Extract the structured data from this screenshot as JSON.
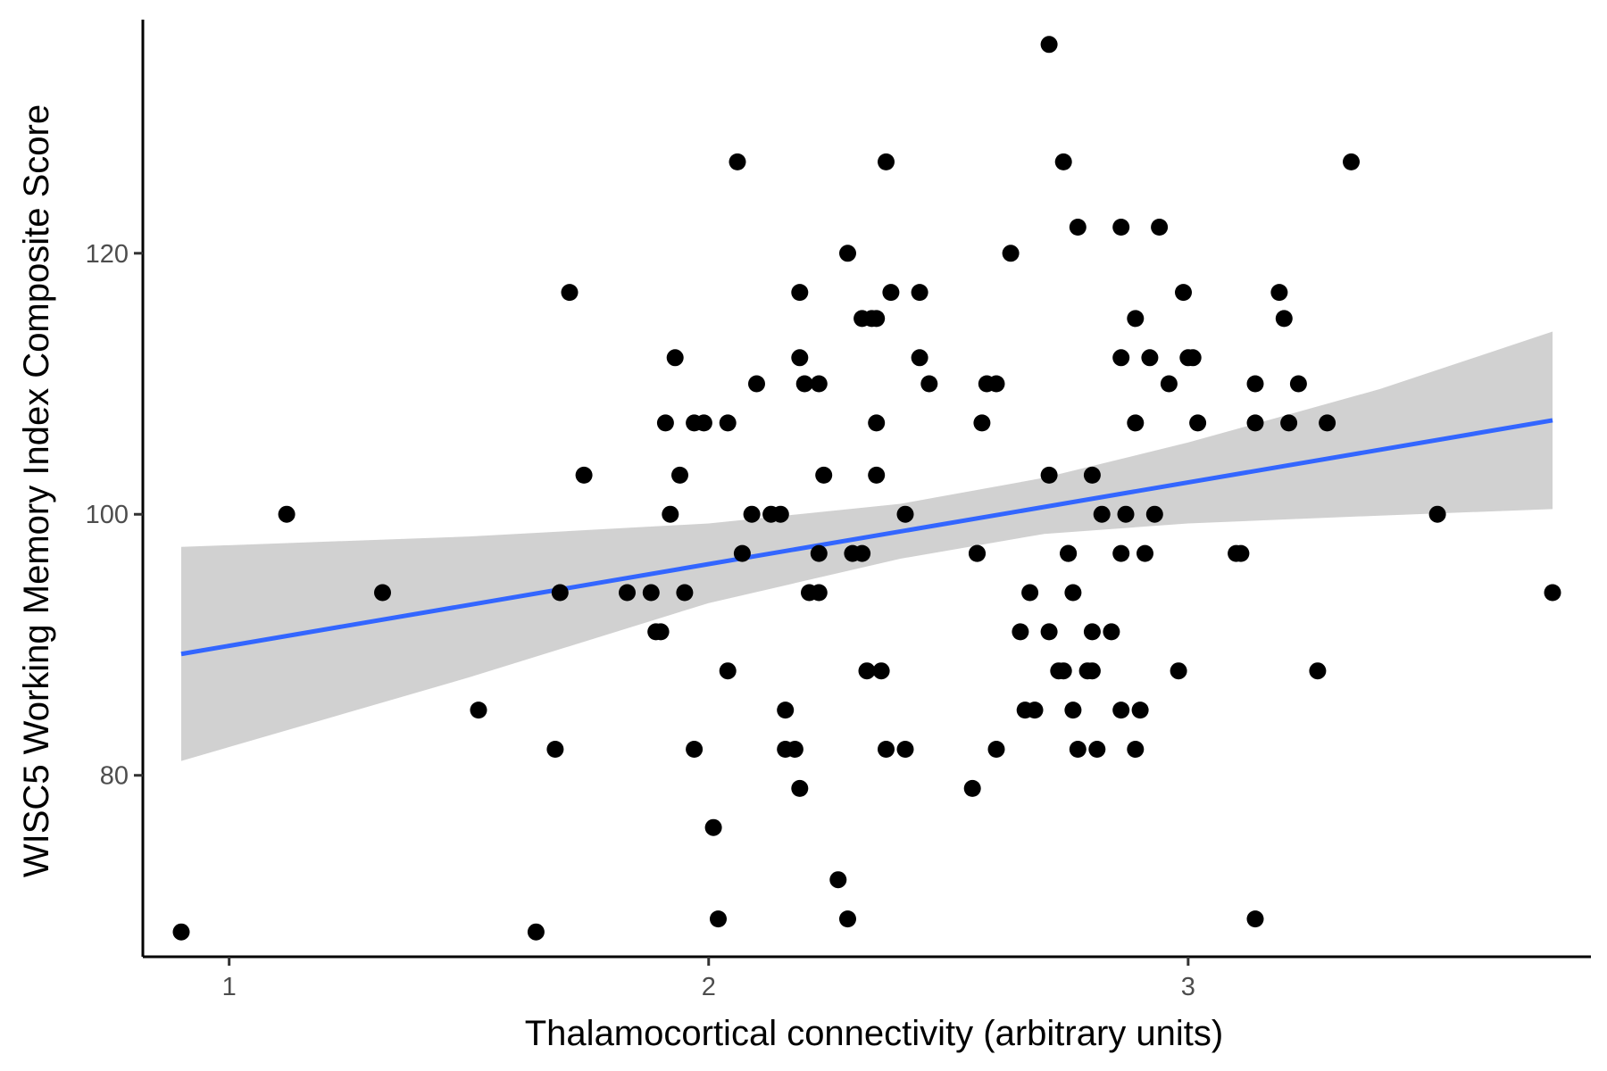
{
  "chart_data": {
    "type": "scatter",
    "title": "",
    "xlabel": "Thalamocortical connectivity (arbitrary units)",
    "ylabel": "WISC5 Working Memory Index Composite Score",
    "xlim": [
      0.82,
      3.84
    ],
    "ylim": [
      66.1,
      137.9
    ],
    "xticks": [
      1,
      2,
      3
    ],
    "yticks": [
      80,
      100,
      120
    ],
    "grid": false,
    "legend": "none",
    "colors": {
      "points": "#000000",
      "fit_line": "#3366ff",
      "ci_band": "#cccccc"
    },
    "fit": {
      "method": "lm",
      "line": [
        [
          0.9,
          89.3
        ],
        [
          3.76,
          107.2
        ]
      ],
      "ci_upper": [
        [
          0.9,
          97.5
        ],
        [
          1.5,
          98.3
        ],
        [
          2.0,
          99.3
        ],
        [
          2.4,
          100.8
        ],
        [
          2.7,
          102.8
        ],
        [
          3.0,
          105.5
        ],
        [
          3.4,
          109.6
        ],
        [
          3.76,
          114.0
        ]
      ],
      "ci_lower": [
        [
          0.9,
          81.1
        ],
        [
          1.5,
          87.5
        ],
        [
          2.0,
          93.2
        ],
        [
          2.4,
          96.6
        ],
        [
          2.7,
          98.5
        ],
        [
          3.0,
          99.3
        ],
        [
          3.4,
          99.9
        ],
        [
          3.76,
          100.4
        ]
      ]
    },
    "points": [
      [
        0.9,
        68
      ],
      [
        1.12,
        100
      ],
      [
        1.32,
        94
      ],
      [
        1.52,
        85
      ],
      [
        1.64,
        68
      ],
      [
        1.68,
        82
      ],
      [
        1.69,
        94
      ],
      [
        1.71,
        117
      ],
      [
        1.74,
        103
      ],
      [
        1.83,
        94
      ],
      [
        1.88,
        94
      ],
      [
        1.89,
        91
      ],
      [
        1.9,
        91
      ],
      [
        1.91,
        107
      ],
      [
        1.92,
        100
      ],
      [
        1.93,
        112
      ],
      [
        1.94,
        103
      ],
      [
        1.95,
        94
      ],
      [
        1.97,
        82
      ],
      [
        1.97,
        107
      ],
      [
        1.99,
        107
      ],
      [
        2.01,
        76
      ],
      [
        2.02,
        69
      ],
      [
        2.04,
        88
      ],
      [
        2.04,
        107
      ],
      [
        2.06,
        127
      ],
      [
        2.07,
        97
      ],
      [
        2.09,
        100
      ],
      [
        2.1,
        110
      ],
      [
        2.13,
        100
      ],
      [
        2.15,
        100
      ],
      [
        2.16,
        85
      ],
      [
        2.16,
        82
      ],
      [
        2.18,
        82
      ],
      [
        2.19,
        79
      ],
      [
        2.19,
        117
      ],
      [
        2.19,
        112
      ],
      [
        2.2,
        110
      ],
      [
        2.21,
        94
      ],
      [
        2.23,
        94
      ],
      [
        2.23,
        97
      ],
      [
        2.23,
        110
      ],
      [
        2.24,
        103
      ],
      [
        2.27,
        72
      ],
      [
        2.29,
        120
      ],
      [
        2.29,
        69
      ],
      [
        2.3,
        97
      ],
      [
        2.32,
        97
      ],
      [
        2.32,
        115
      ],
      [
        2.33,
        88
      ],
      [
        2.34,
        115
      ],
      [
        2.35,
        107
      ],
      [
        2.35,
        103
      ],
      [
        2.35,
        115
      ],
      [
        2.36,
        88
      ],
      [
        2.37,
        82
      ],
      [
        2.37,
        127
      ],
      [
        2.38,
        117
      ],
      [
        2.41,
        82
      ],
      [
        2.41,
        100
      ],
      [
        2.44,
        112
      ],
      [
        2.44,
        117
      ],
      [
        2.46,
        110
      ],
      [
        2.55,
        79
      ],
      [
        2.56,
        97
      ],
      [
        2.56,
        97
      ],
      [
        2.57,
        107
      ],
      [
        2.58,
        110
      ],
      [
        2.6,
        110
      ],
      [
        2.6,
        82
      ],
      [
        2.63,
        120
      ],
      [
        2.65,
        91
      ],
      [
        2.66,
        85
      ],
      [
        2.67,
        94
      ],
      [
        2.68,
        85
      ],
      [
        2.71,
        91
      ],
      [
        2.71,
        103
      ],
      [
        2.71,
        136
      ],
      [
        2.73,
        88
      ],
      [
        2.74,
        88
      ],
      [
        2.74,
        127
      ],
      [
        2.75,
        97
      ],
      [
        2.75,
        97
      ],
      [
        2.76,
        85
      ],
      [
        2.76,
        94
      ],
      [
        2.77,
        82
      ],
      [
        2.77,
        122
      ],
      [
        2.79,
        88
      ],
      [
        2.8,
        91
      ],
      [
        2.8,
        103
      ],
      [
        2.8,
        88
      ],
      [
        2.81,
        82
      ],
      [
        2.82,
        100
      ],
      [
        2.84,
        91
      ],
      [
        2.86,
        85
      ],
      [
        2.86,
        97
      ],
      [
        2.86,
        112
      ],
      [
        2.86,
        122
      ],
      [
        2.87,
        100
      ],
      [
        2.89,
        82
      ],
      [
        2.89,
        107
      ],
      [
        2.89,
        115
      ],
      [
        2.9,
        85
      ],
      [
        2.91,
        97
      ],
      [
        2.92,
        112
      ],
      [
        2.93,
        100
      ],
      [
        2.94,
        122
      ],
      [
        2.96,
        110
      ],
      [
        2.98,
        88
      ],
      [
        2.99,
        117
      ],
      [
        3.0,
        112
      ],
      [
        3.01,
        112
      ],
      [
        3.02,
        107
      ],
      [
        3.1,
        97
      ],
      [
        3.11,
        97
      ],
      [
        3.14,
        69
      ],
      [
        3.14,
        107
      ],
      [
        3.14,
        110
      ],
      [
        3.19,
        117
      ],
      [
        3.2,
        115
      ],
      [
        3.21,
        107
      ],
      [
        3.23,
        110
      ],
      [
        3.27,
        88
      ],
      [
        3.29,
        107
      ],
      [
        3.34,
        127
      ],
      [
        3.52,
        100
      ],
      [
        3.76,
        94
      ]
    ]
  }
}
